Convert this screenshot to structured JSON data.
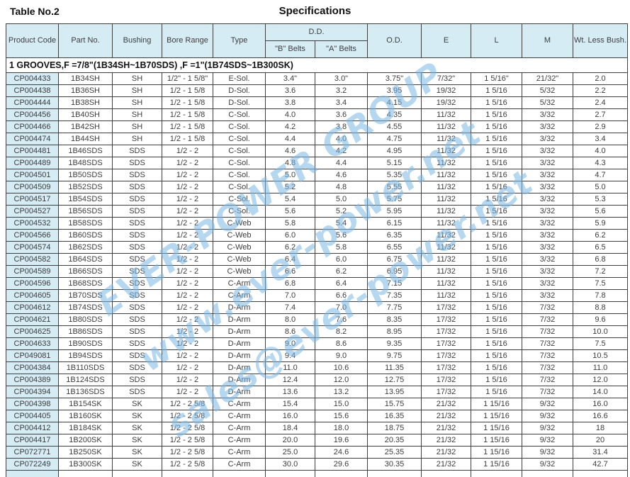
{
  "page": {
    "table_label": "Table No.2",
    "title": "Specifications"
  },
  "watermark": {
    "lines": [
      "EVER-POWER GROUP",
      "www.ever-power.net",
      "sales@ever-power.net"
    ],
    "color": "#78b6e4"
  },
  "colors": {
    "header_bg": "#d6ecf4",
    "border": "#3f3f3f",
    "text": "#3c3c3c"
  },
  "table": {
    "headers": {
      "product_code": "Product Code",
      "part_no": "Part No.",
      "bushing": "Bushing",
      "bore_range": "Bore Range",
      "type": "Type",
      "dd": "D.D.",
      "b_belts": "\"B\" Belts",
      "a_belts": "\"A\" Belts",
      "od": "O.D.",
      "e": "E",
      "l": "L",
      "m": "M",
      "wt": "Wt. Less Bush."
    },
    "section_header": "1 GROOVES,F =7/8\"(1B34SH~1B70SDS) ,F =1\"(1B74SDS~1B300SK)",
    "rows": [
      [
        "CP004433",
        "1B34SH",
        "SH",
        "1/2\" - 1 5/8\"",
        "E-Sol.",
        "3.4\"",
        "3.0\"",
        "3.75\"",
        "7/32\"",
        "1 5/16\"",
        "21/32\"",
        "2.0"
      ],
      [
        "CP004438",
        "1B36SH",
        "SH",
        "1/2 - 1 5/8",
        "D-Sol.",
        "3.6",
        "3.2",
        "3.95",
        "19/32",
        "1 5/16",
        "5/32",
        "2.2"
      ],
      [
        "CP004444",
        "1B38SH",
        "SH",
        "1/2 - 1 5/8",
        "D-Sol.",
        "3.8",
        "3.4",
        "4.15",
        "19/32",
        "1 5/16",
        "5/32",
        "2.4"
      ],
      [
        "CP004456",
        "1B40SH",
        "SH",
        "1/2 - 1 5/8",
        "C-Sol.",
        "4.0",
        "3.6",
        "4.35",
        "11/32",
        "1 5/16",
        "3/32",
        "2.7"
      ],
      [
        "CP004466",
        "1B42SH",
        "SH",
        "1/2 - 1 5/8",
        "C-Sol.",
        "4.2",
        "3.8",
        "4.55",
        "11/32",
        "1 5/16",
        "3/32",
        "2.9"
      ],
      [
        "CP004474",
        "1B44SH",
        "SH",
        "1/2 - 1 5/8",
        "C-Sol.",
        "4.4",
        "4.0",
        "4.75",
        "11/32",
        "1 5/16",
        "3/32",
        "3.4"
      ],
      [
        "CP004481",
        "1B46SDS",
        "SDS",
        "1/2 - 2",
        "C-Sol.",
        "4.6",
        "4.2",
        "4.95",
        "11/32",
        "1 5/16",
        "3/32",
        "4.0"
      ],
      [
        "CP004489",
        "1B48SDS",
        "SDS",
        "1/2 - 2",
        "C-Sol.",
        "4.8",
        "4.4",
        "5.15",
        "11/32",
        "1 5/16",
        "3/32",
        "4.3"
      ],
      [
        "CP004501",
        "1B50SDS",
        "SDS",
        "1/2 - 2",
        "C-Sol.",
        "5.0",
        "4.6",
        "5.35",
        "11/32",
        "1 5/16",
        "3/32",
        "4.7"
      ],
      [
        "CP004509",
        "1B52SDS",
        "SDS",
        "1/2 - 2",
        "C-Sol.",
        "5.2",
        "4.8",
        "5.55",
        "11/32",
        "1 5/16",
        "3/32",
        "5.0"
      ],
      [
        "CP004517",
        "1B54SDS",
        "SDS",
        "1/2 - 2",
        "C-Sol.",
        "5.4",
        "5.0",
        "5.75",
        "11/32",
        "1 5/16",
        "3/32",
        "5.3"
      ],
      [
        "CP004527",
        "1B56SDS",
        "SDS",
        "1/2 - 2",
        "C-Sol.",
        "5.6",
        "5.2",
        "5.95",
        "11/32",
        "1 5/16",
        "3/32",
        "5.6"
      ],
      [
        "CP004532",
        "1B58SDS",
        "SDS",
        "1/2 - 2",
        "C-Web",
        "5.8",
        "5.4",
        "6.15",
        "11/32",
        "1 5/16",
        "3/32",
        "5.9"
      ],
      [
        "CP004566",
        "1B60SDS",
        "SDS",
        "1/2 - 2",
        "C-Web",
        "6.0",
        "5.6",
        "6.35",
        "11/32",
        "1 5/16",
        "3/32",
        "6.2"
      ],
      [
        "CP004574",
        "1B62SDS",
        "SDS",
        "1/2 - 2",
        "C-Web",
        "6.2",
        "5.8",
        "6.55",
        "11/32",
        "1 5/16",
        "3/32",
        "6.5"
      ],
      [
        "CP004582",
        "1B64SDS",
        "SDS",
        "1/2 - 2",
        "C-Web",
        "6.4",
        "6.0",
        "6.75",
        "11/32",
        "1 5/16",
        "3/32",
        "6.8"
      ],
      [
        "CP004589",
        "1B66SDS",
        "SDS",
        "1/2 - 2",
        "C-Web",
        "6.6",
        "6.2",
        "6.95",
        "11/32",
        "1 5/16",
        "3/32",
        "7.2"
      ],
      [
        "CP004596",
        "1B68SDS",
        "SDS",
        "1/2 - 2",
        "C-Arm",
        "6.8",
        "6.4",
        "7.15",
        "11/32",
        "1 5/16",
        "3/32",
        "7.5"
      ],
      [
        "CP004605",
        "1B70SDS",
        "SDS",
        "1/2 - 2",
        "C-Arm",
        "7.0",
        "6.6",
        "7.35",
        "11/32",
        "1 5/16",
        "3/32",
        "7.8"
      ],
      [
        "CP004612",
        "1B74SDS",
        "SDS",
        "1/2 - 2",
        "D-Arm",
        "7.4",
        "7.0",
        "7.75",
        "17/32",
        "1 5/16",
        "7/32",
        "8.8"
      ],
      [
        "CP004621",
        "1B80SDS",
        "SDS",
        "1/2 - 2",
        "D-Arm",
        "8.0",
        "7.6",
        "8.35",
        "17/32",
        "1 5/16",
        "7/32",
        "9.6"
      ],
      [
        "CP004625",
        "1B86SDS",
        "SDS",
        "1/2 - 2",
        "D-Arm",
        "8.6",
        "8.2",
        "8.95",
        "17/32",
        "1 5/16",
        "7/32",
        "10.0"
      ],
      [
        "CP004633",
        "1B90SDS",
        "SDS",
        "1/2 - 2",
        "D-Arm",
        "9.0",
        "8.6",
        "9.35",
        "17/32",
        "1 5/16",
        "7/32",
        "7.5"
      ],
      [
        "CP049081",
        "1B94SDS",
        "SDS",
        "1/2 - 2",
        "D-Arm",
        "9.4",
        "9.0",
        "9.75",
        "17/32",
        "1 5/16",
        "7/32",
        "10.5"
      ],
      [
        "CP004384",
        "1B110SDS",
        "SDS",
        "1/2 - 2",
        "D-Arm",
        "11.0",
        "10.6",
        "11.35",
        "17/32",
        "1 5/16",
        "7/32",
        "11.0"
      ],
      [
        "CP004389",
        "1B124SDS",
        "SDS",
        "1/2 - 2",
        "D-Arm",
        "12.4",
        "12.0",
        "12.75",
        "17/32",
        "1 5/16",
        "7/32",
        "12.0"
      ],
      [
        "CP004394",
        "1B136SDS",
        "SDS",
        "1/2 - 2",
        "D-Arm",
        "13.6",
        "13.2",
        "13.95",
        "17/32",
        "1 5/16",
        "7/32",
        "14.0"
      ],
      [
        "CP004398",
        "1B154SK",
        "SK",
        "1/2 - 2 5/8",
        "C-Arm",
        "15.4",
        "15.0",
        "15.75",
        "21/32",
        "1 15/16",
        "9/32",
        "16.0"
      ],
      [
        "CP004405",
        "1B160SK",
        "SK",
        "1/2 - 2 5/8",
        "C-Arm",
        "16.0",
        "15.6",
        "16.35",
        "21/32",
        "1 15/16",
        "9/32",
        "16.6"
      ],
      [
        "CP004412",
        "1B184SK",
        "SK",
        "1/2 - 2 5/8",
        "C-Arm",
        "18.4",
        "18.0",
        "18.75",
        "21/32",
        "1 15/16",
        "9/32",
        "18"
      ],
      [
        "CP004417",
        "1B200SK",
        "SK",
        "1/2 - 2 5/8",
        "C-Arm",
        "20.0",
        "19.6",
        "20.35",
        "21/32",
        "1 15/16",
        "9/32",
        "20"
      ],
      [
        "CP072771",
        "1B250SK",
        "SK",
        "1/2 - 2 5/8",
        "C-Arm",
        "25.0",
        "24.6",
        "25.35",
        "21/32",
        "1 15/16",
        "9/32",
        "31.4"
      ],
      [
        "CP072249",
        "1B300SK",
        "SK",
        "1/2 - 2 5/8",
        "C-Arm",
        "30.0",
        "29.6",
        "30.35",
        "21/32",
        "1 15/16",
        "9/32",
        "42.7"
      ]
    ]
  }
}
